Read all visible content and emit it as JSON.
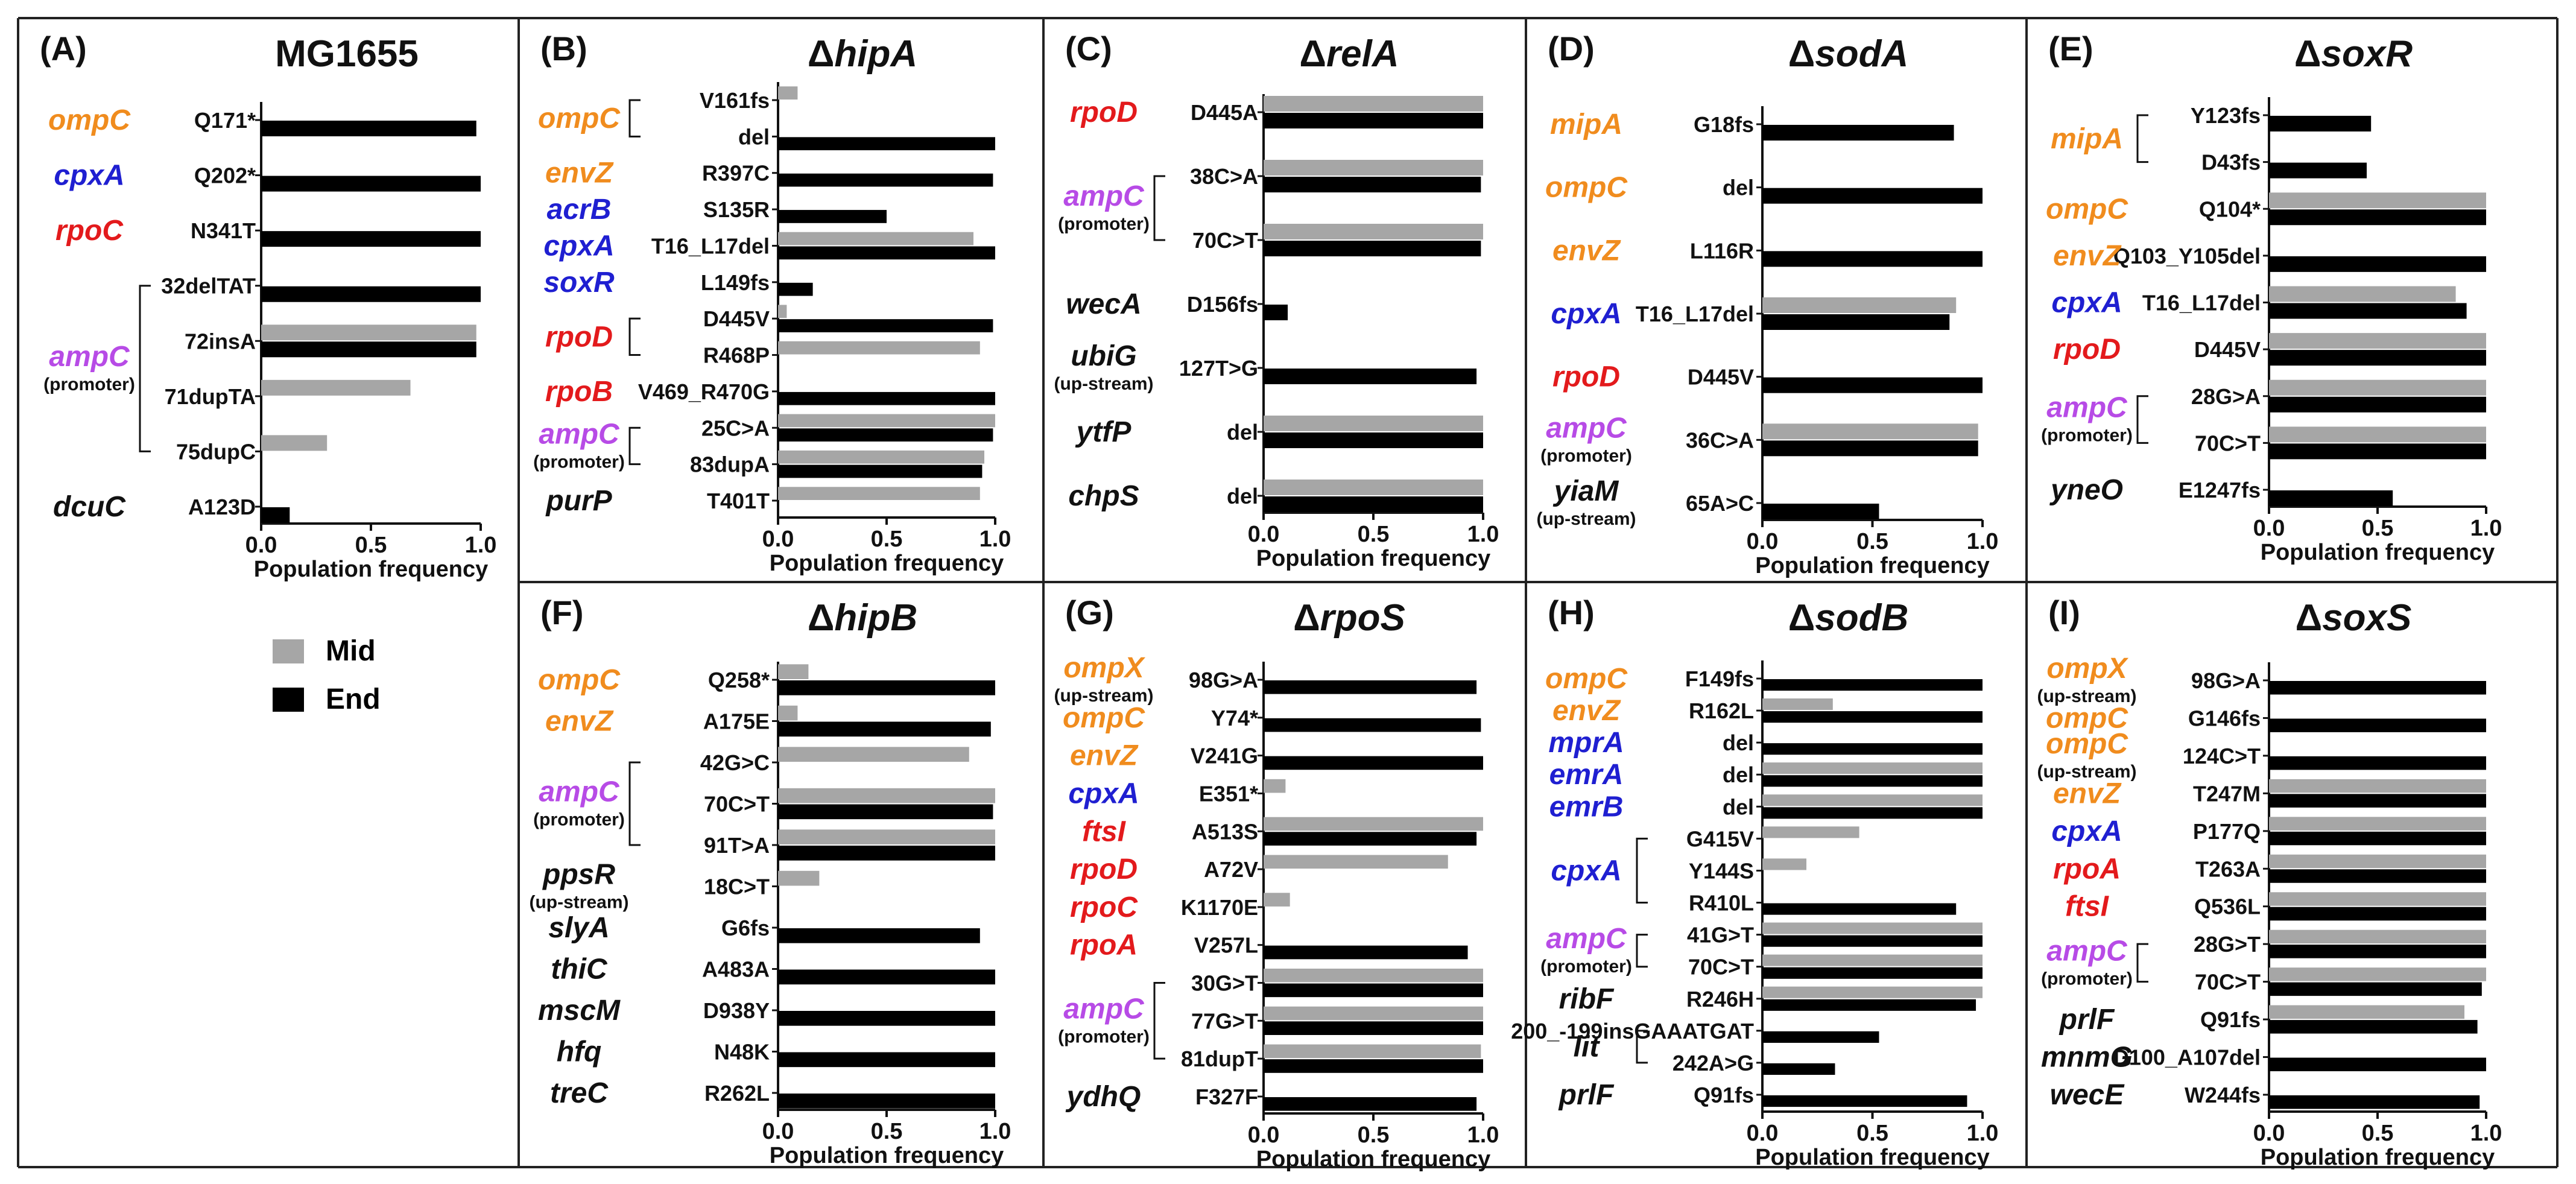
{
  "colors": {
    "mid": "#a6a6a6",
    "end": "#000000",
    "orange": "#f08c1e",
    "blue": "#1f1fd1",
    "red": "#e31a1c",
    "purple": "#b74be6",
    "black": "#111111"
  },
  "legend": {
    "mid": "Mid",
    "end": "End"
  },
  "xlabel": "Population frequency",
  "ticks": [
    "0.0",
    "0.5",
    "1.0"
  ],
  "promoter_label": "(promoter)",
  "upstream_label": "(up-stream)",
  "chart_data": [
    {
      "type": "bar",
      "panel": "(A)",
      "title": "MG1655",
      "xlim": [
        0,
        1
      ],
      "genes": [
        {
          "name": "ompC",
          "color": "orange",
          "rows": [
            0
          ]
        },
        {
          "name": "cpxA",
          "color": "blue",
          "rows": [
            1
          ]
        },
        {
          "name": "rpoC",
          "color": "red",
          "rows": [
            2
          ]
        },
        {
          "name": "ampC",
          "color": "purple",
          "note": "promoter",
          "rows": [
            3,
            4,
            5,
            6
          ]
        },
        {
          "name": "dcuC",
          "color": "black",
          "rows": [
            7
          ]
        }
      ],
      "mutations": [
        "Q171*",
        "Q202*",
        "N341T",
        "32delTAT",
        "72insA",
        "71dupTA",
        "75dupC",
        "A123D"
      ],
      "series": [
        {
          "name": "Mid",
          "values": [
            0,
            0,
            0,
            0,
            0.98,
            0.68,
            0.3,
            0
          ]
        },
        {
          "name": "End",
          "values": [
            0.98,
            1.0,
            1.0,
            1.0,
            0.98,
            0,
            0,
            0.13
          ]
        }
      ]
    },
    {
      "type": "bar",
      "panel": "(B)",
      "title": "ΔhipA",
      "xlim": [
        0,
        1
      ],
      "genes": [
        {
          "name": "ompC",
          "color": "orange",
          "rows": [
            0,
            1
          ]
        },
        {
          "name": "envZ",
          "color": "orange",
          "rows": [
            2
          ]
        },
        {
          "name": "acrB",
          "color": "blue",
          "rows": [
            3
          ]
        },
        {
          "name": "cpxA",
          "color": "blue",
          "rows": [
            4
          ]
        },
        {
          "name": "soxR",
          "color": "blue",
          "rows": [
            5
          ]
        },
        {
          "name": "rpoD",
          "color": "red",
          "rows": [
            6,
            7
          ]
        },
        {
          "name": "rpoB",
          "color": "red",
          "rows": [
            8
          ]
        },
        {
          "name": "ampC",
          "color": "purple",
          "note": "promoter",
          "rows": [
            9,
            10
          ]
        },
        {
          "name": "purP",
          "color": "black",
          "rows": [
            11
          ]
        }
      ],
      "mutations": [
        "V161fs",
        "del",
        "R397C",
        "S135R",
        "T16_L17del",
        "L149fs",
        "D445V",
        "R468P",
        "V469_R470G",
        "25C>A",
        "83dupA",
        "T401T"
      ],
      "series": [
        {
          "name": "Mid",
          "values": [
            0.09,
            0,
            0,
            0,
            0.9,
            0,
            0.04,
            0.93,
            0,
            1.0,
            0.95,
            0.93
          ]
        },
        {
          "name": "End",
          "values": [
            0,
            1.0,
            0.99,
            0.5,
            1.0,
            0.16,
            0.99,
            0,
            1.0,
            0.99,
            0.94,
            0
          ]
        }
      ]
    },
    {
      "type": "bar",
      "panel": "(C)",
      "title": "ΔrelA",
      "xlim": [
        0,
        1
      ],
      "genes": [
        {
          "name": "rpoD",
          "color": "red",
          "rows": [
            0
          ]
        },
        {
          "name": "ampC",
          "color": "purple",
          "note": "promoter",
          "rows": [
            1,
            2
          ]
        },
        {
          "name": "wecA",
          "color": "black",
          "rows": [
            3
          ]
        },
        {
          "name": "ubiG",
          "color": "black",
          "note": "upstream",
          "rows": [
            4
          ]
        },
        {
          "name": "ytfP",
          "color": "black",
          "rows": [
            5
          ]
        },
        {
          "name": "chpS",
          "color": "black",
          "rows": [
            6
          ]
        }
      ],
      "mutations": [
        "D445A",
        "38C>A",
        "70C>T",
        "D156fs",
        "127T>G",
        "del",
        "del"
      ],
      "series": [
        {
          "name": "Mid",
          "values": [
            1.0,
            1.0,
            1.0,
            0,
            0,
            1.0,
            1.0
          ]
        },
        {
          "name": "End",
          "values": [
            1.0,
            0.99,
            0.99,
            0.11,
            0.97,
            1.0,
            1.0
          ]
        }
      ]
    },
    {
      "type": "bar",
      "panel": "(D)",
      "title": "ΔsodA",
      "xlim": [
        0,
        1
      ],
      "genes": [
        {
          "name": "mipA",
          "color": "orange",
          "rows": [
            0
          ]
        },
        {
          "name": "ompC",
          "color": "orange",
          "rows": [
            1
          ]
        },
        {
          "name": "envZ",
          "color": "orange",
          "rows": [
            2
          ]
        },
        {
          "name": "cpxA",
          "color": "blue",
          "rows": [
            3
          ]
        },
        {
          "name": "rpoD",
          "color": "red",
          "rows": [
            4
          ]
        },
        {
          "name": "ampC",
          "color": "purple",
          "note": "promoter",
          "rows": [
            5
          ]
        },
        {
          "name": "yiaM",
          "color": "black",
          "note": "upstream",
          "rows": [
            6
          ]
        }
      ],
      "mutations": [
        "G18fs",
        "del",
        "L116R",
        "T16_L17del",
        "D445V",
        "36C>A",
        "65A>C"
      ],
      "series": [
        {
          "name": "Mid",
          "values": [
            0,
            0,
            0,
            0.88,
            0,
            0.98,
            0
          ]
        },
        {
          "name": "End",
          "values": [
            0.87,
            1.0,
            1.0,
            0.85,
            1.0,
            0.98,
            0.53
          ]
        }
      ]
    },
    {
      "type": "bar",
      "panel": "(E)",
      "title": "ΔsoxR",
      "xlim": [
        0,
        1
      ],
      "genes": [
        {
          "name": "mipA",
          "color": "orange",
          "rows": [
            0,
            1
          ]
        },
        {
          "name": "ompC",
          "color": "orange",
          "rows": [
            2
          ]
        },
        {
          "name": "envZ",
          "color": "orange",
          "rows": [
            3
          ]
        },
        {
          "name": "cpxA",
          "color": "blue",
          "rows": [
            4
          ]
        },
        {
          "name": "rpoD",
          "color": "red",
          "rows": [
            5
          ]
        },
        {
          "name": "ampC",
          "color": "purple",
          "note": "promoter",
          "rows": [
            6,
            7
          ]
        },
        {
          "name": "yneO",
          "color": "black",
          "rows": [
            8
          ]
        }
      ],
      "mutations": [
        "Y123fs",
        "D43fs",
        "Q104*",
        "Q103_Y105del",
        "T16_L17del",
        "D445V",
        "28G>A",
        "70C>T",
        "E1247fs"
      ],
      "series": [
        {
          "name": "Mid",
          "values": [
            0,
            0,
            1.0,
            0,
            0.86,
            1.0,
            1.0,
            1.0,
            0
          ]
        },
        {
          "name": "End",
          "values": [
            0.47,
            0.45,
            1.0,
            1.0,
            0.91,
            1.0,
            1.0,
            1.0,
            0.57
          ]
        }
      ]
    },
    {
      "type": "bar",
      "panel": "(F)",
      "title": "ΔhipB",
      "xlim": [
        0,
        1
      ],
      "genes": [
        {
          "name": "ompC",
          "color": "orange",
          "rows": [
            0
          ]
        },
        {
          "name": "envZ",
          "color": "orange",
          "rows": [
            1
          ]
        },
        {
          "name": "ampC",
          "color": "purple",
          "note": "promoter",
          "rows": [
            2,
            3,
            4
          ]
        },
        {
          "name": "ppsR",
          "color": "black",
          "note": "upstream",
          "rows": [
            5
          ]
        },
        {
          "name": "slyA",
          "color": "black",
          "rows": [
            6
          ]
        },
        {
          "name": "thiC",
          "color": "black",
          "rows": [
            7
          ]
        },
        {
          "name": "mscM",
          "color": "black",
          "rows": [
            8
          ]
        },
        {
          "name": "hfq",
          "color": "black",
          "rows": [
            9
          ]
        },
        {
          "name": "treC",
          "color": "black",
          "rows": [
            10
          ]
        }
      ],
      "mutations": [
        "Q258*",
        "A175E",
        "42G>C",
        "70C>T",
        "91T>A",
        "18C>T",
        "G6fs",
        "A483A",
        "D938Y",
        "N48K",
        "R262L"
      ],
      "series": [
        {
          "name": "Mid",
          "values": [
            0.14,
            0.09,
            0.88,
            1.0,
            1.0,
            0.19,
            0,
            0,
            0,
            0,
            0
          ]
        },
        {
          "name": "End",
          "values": [
            1.0,
            0.98,
            0,
            0.99,
            1.0,
            0,
            0.93,
            1.0,
            1.0,
            1.0,
            1.0
          ]
        }
      ]
    },
    {
      "type": "bar",
      "panel": "(G)",
      "title": "ΔrpoS",
      "xlim": [
        0,
        1
      ],
      "genes": [
        {
          "name": "ompX",
          "color": "orange",
          "note": "upstream",
          "rows": [
            0
          ]
        },
        {
          "name": "ompC",
          "color": "orange",
          "rows": [
            1
          ]
        },
        {
          "name": "envZ",
          "color": "orange",
          "rows": [
            2
          ]
        },
        {
          "name": "cpxA",
          "color": "blue",
          "rows": [
            3
          ]
        },
        {
          "name": "ftsI",
          "color": "red",
          "rows": [
            4
          ]
        },
        {
          "name": "rpoD",
          "color": "red",
          "rows": [
            5
          ]
        },
        {
          "name": "rpoC",
          "color": "red",
          "rows": [
            6
          ]
        },
        {
          "name": "rpoA",
          "color": "red",
          "rows": [
            7
          ]
        },
        {
          "name": "ampC",
          "color": "purple",
          "note": "promoter",
          "rows": [
            8,
            9,
            10
          ]
        },
        {
          "name": "ydhQ",
          "color": "black",
          "rows": [
            11
          ]
        }
      ],
      "mutations": [
        "98G>A",
        "Y74*",
        "V241G",
        "E351*",
        "A513S",
        "A72V",
        "K1170E",
        "V257L",
        "30G>T",
        "77G>T",
        "81dupT",
        "F327F"
      ],
      "series": [
        {
          "name": "Mid",
          "values": [
            0,
            0,
            0,
            0.1,
            1.0,
            0.84,
            0.12,
            0,
            1.0,
            1.0,
            0.99,
            0
          ]
        },
        {
          "name": "End",
          "values": [
            0.97,
            0.99,
            1.0,
            0,
            0.97,
            0,
            0,
            0.93,
            1.0,
            1.0,
            1.0,
            0.97
          ]
        }
      ]
    },
    {
      "type": "bar",
      "panel": "(H)",
      "title": "ΔsodB",
      "xlim": [
        0,
        1
      ],
      "genes": [
        {
          "name": "ompC",
          "color": "orange",
          "rows": [
            0
          ]
        },
        {
          "name": "envZ",
          "color": "orange",
          "rows": [
            1
          ]
        },
        {
          "name": "mprA",
          "color": "blue",
          "rows": [
            2
          ]
        },
        {
          "name": "emrA",
          "color": "blue",
          "rows": [
            3
          ]
        },
        {
          "name": "emrB",
          "color": "blue",
          "rows": [
            4
          ]
        },
        {
          "name": "cpxA",
          "color": "blue",
          "rows": [
            5,
            6,
            7
          ]
        },
        {
          "name": "ampC",
          "color": "purple",
          "note": "promoter",
          "rows": [
            8,
            9
          ]
        },
        {
          "name": "ribF",
          "color": "black",
          "rows": [
            10
          ]
        },
        {
          "name": "lit",
          "color": "black",
          "rows": [
            11,
            12
          ]
        },
        {
          "name": "prlF",
          "color": "black",
          "rows": [
            13
          ]
        }
      ],
      "mutations": [
        "F149fs",
        "R162L",
        "del",
        "del",
        "del",
        "G415V",
        "Y144S",
        "R410L",
        "41G>T",
        "70C>T",
        "R246H",
        "200_-199insGAAATGAT",
        "242A>G",
        "Q91fs"
      ],
      "series": [
        {
          "name": "Mid",
          "values": [
            0,
            0.32,
            0,
            1.0,
            1.0,
            0.44,
            0.2,
            0,
            1.0,
            1.0,
            1.0,
            0,
            0,
            0
          ]
        },
        {
          "name": "End",
          "values": [
            1.0,
            1.0,
            1.0,
            1.0,
            1.0,
            0,
            0,
            0.88,
            1.0,
            1.0,
            0.97,
            0.53,
            0.33,
            0.93
          ]
        }
      ]
    },
    {
      "type": "bar",
      "panel": "(I)",
      "title": "ΔsoxS",
      "xlim": [
        0,
        1
      ],
      "genes": [
        {
          "name": "ompX",
          "color": "orange",
          "note": "upstream",
          "rows": [
            0
          ]
        },
        {
          "name": "ompC",
          "color": "orange",
          "rows": [
            1
          ]
        },
        {
          "name": "ompC",
          "color": "orange",
          "note": "upstream",
          "rows": [
            2
          ]
        },
        {
          "name": "envZ",
          "color": "orange",
          "rows": [
            3
          ]
        },
        {
          "name": "cpxA",
          "color": "blue",
          "rows": [
            4
          ]
        },
        {
          "name": "rpoA",
          "color": "red",
          "rows": [
            5
          ]
        },
        {
          "name": "ftsI",
          "color": "red",
          "rows": [
            6
          ]
        },
        {
          "name": "ampC",
          "color": "purple",
          "note": "promoter",
          "rows": [
            7,
            8
          ]
        },
        {
          "name": "prlF",
          "color": "black",
          "rows": [
            9
          ]
        },
        {
          "name": "mnmG",
          "color": "black",
          "rows": [
            10
          ]
        },
        {
          "name": "wecE",
          "color": "black",
          "rows": [
            11
          ]
        }
      ],
      "mutations": [
        "98G>A",
        "G146fs",
        "124C>T",
        "T247M",
        "P177Q",
        "T263A",
        "Q536L",
        "28G>T",
        "70C>T",
        "Q91fs",
        "D100_A107del",
        "W244fs"
      ],
      "series": [
        {
          "name": "Mid",
          "values": [
            0,
            0,
            0,
            1.0,
            1.0,
            1.0,
            1.0,
            1.0,
            1.0,
            0.9,
            0,
            0
          ]
        },
        {
          "name": "End",
          "values": [
            1.0,
            1.0,
            1.0,
            1.0,
            1.0,
            1.0,
            1.0,
            1.0,
            0.98,
            0.96,
            1.0,
            0.97
          ]
        }
      ]
    }
  ]
}
